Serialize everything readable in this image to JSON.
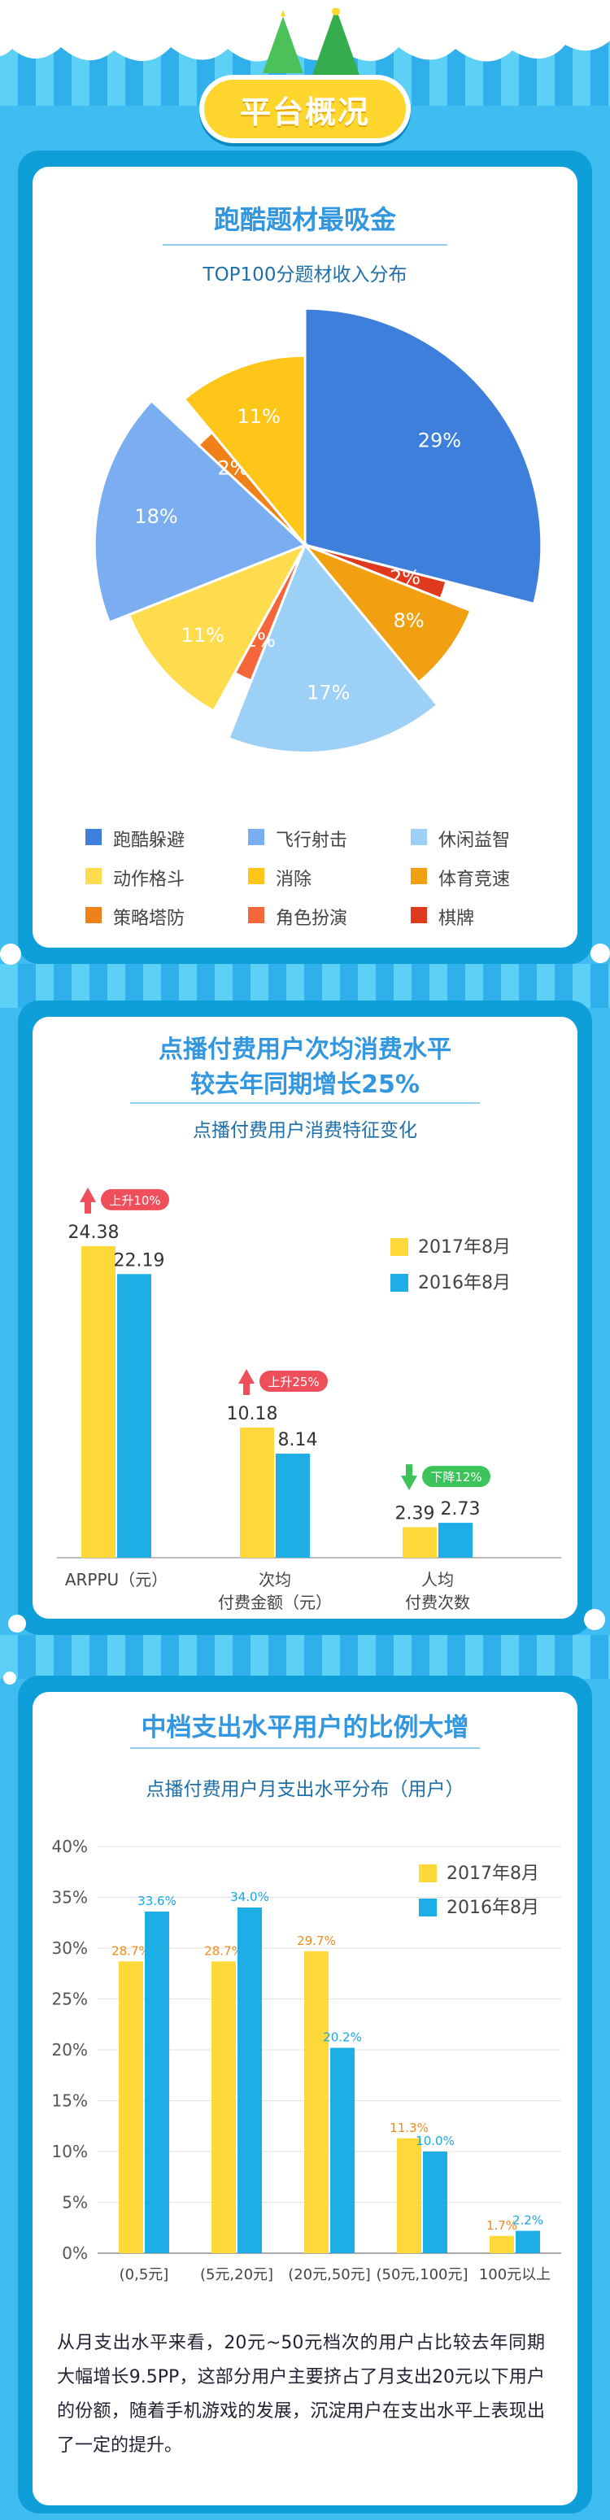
{
  "header": {
    "title": "平台概况"
  },
  "section1": {
    "heading": "跑酷题材最吸金",
    "chart_title": "TOP100分题材收入分布",
    "chart_data": {
      "type": "pie",
      "title": "TOP100分题材收入分布",
      "slices": [
        {
          "name": "跑酷躲避",
          "value": 29,
          "label": "29%",
          "color": "#3f7fdc"
        },
        {
          "name": "棋牌",
          "value": 2,
          "label": "2%",
          "color": "#e03a1e"
        },
        {
          "name": "体育竞速",
          "value": 8,
          "label": "8%",
          "color": "#f0a010"
        },
        {
          "name": "休闲益智",
          "value": 17,
          "label": "17%",
          "color": "#9dd0f6"
        },
        {
          "name": "角色扮演",
          "value": 2,
          "label": "2%",
          "color": "#f5673a"
        },
        {
          "name": "动作格斗",
          "value": 11,
          "label": "11%",
          "color": "#ffdc4e"
        },
        {
          "name": "飞行射击",
          "value": 18,
          "label": "18%",
          "color": "#7aaef0"
        },
        {
          "name": "策略塔防",
          "value": 2,
          "label": "2%",
          "color": "#f08118"
        },
        {
          "name": "消除",
          "value": 11,
          "label": "11%",
          "color": "#ffc61a"
        }
      ],
      "legend": [
        "跑酷躲避",
        "飞行射击",
        "休闲益智",
        "动作格斗",
        "消除",
        "体育竞速",
        "策略塔防",
        "角色扮演",
        "棋牌"
      ]
    }
  },
  "section2": {
    "heading_line1": "点播付费用户次均消费水平",
    "heading_line2": "较去年同期增长25%",
    "chart_title": "点播付费用户消费特征变化",
    "chart_data": {
      "type": "bar",
      "categories": [
        "ARPPU（元）",
        "次均\n付费金额（元）",
        "人均\n付费次数"
      ],
      "series": [
        {
          "name": "2017年8月",
          "values": [
            24.38,
            10.18,
            2.39
          ],
          "color": "#ffd83a"
        },
        {
          "name": "2016年8月",
          "values": [
            22.19,
            8.14,
            2.73
          ],
          "color": "#1eaee6"
        }
      ],
      "value_labels": [
        [
          "24.38",
          "22.19"
        ],
        [
          "10.18",
          "8.14"
        ],
        [
          "2.39",
          "2.73"
        ]
      ],
      "changes": [
        {
          "text": "上升10%",
          "direction": "up",
          "color": "#ee4f5a"
        },
        {
          "text": "上升25%",
          "direction": "up",
          "color": "#ee4f5a"
        },
        {
          "text": "下降12%",
          "direction": "down",
          "color": "#3cc35a"
        }
      ],
      "legend_placement": "top-right"
    }
  },
  "section3": {
    "heading": "中档支出水平用户的比例大增",
    "chart_title": "点播付费用户月支出水平分布（用户）",
    "chart_data": {
      "type": "bar",
      "categories": [
        "(0,5元]",
        "(5元,20元]",
        "(20元,50元]",
        "(50元,100元]",
        "100元以上"
      ],
      "series": [
        {
          "name": "2017年8月",
          "values": [
            28.7,
            28.7,
            29.7,
            11.3,
            1.7
          ],
          "labels": [
            "28.7%",
            "28.7%",
            "29.7%",
            "11.3%",
            "1.7%"
          ],
          "color": "#ffd83a"
        },
        {
          "name": "2016年8月",
          "values": [
            33.6,
            34.0,
            20.2,
            10.0,
            2.2
          ],
          "labels": [
            "33.6%",
            "34.0%",
            "20.2%",
            "10.0%",
            "2.2%"
          ],
          "color": "#1eaee6"
        }
      ],
      "yticks": [
        "0%",
        "5%",
        "10%",
        "15%",
        "20%",
        "25%",
        "30%",
        "35%",
        "40%"
      ],
      "ylim": [
        0,
        40
      ],
      "legend_placement": "top-right"
    },
    "paragraph": "从月支出水平来看，20元~50元档次的用户占比较去年同期大幅增长9.5PP，这部分用户主要挤占了月支出20元以下用户的份额，随着手机游戏的发展，沉淀用户在支出水平上表现出了一定的提升。"
  },
  "colors": {
    "background": "#40bdf0",
    "panel": "#0e9fd9",
    "accent_blue": "#3397e0",
    "badge": "#ffd62d"
  }
}
